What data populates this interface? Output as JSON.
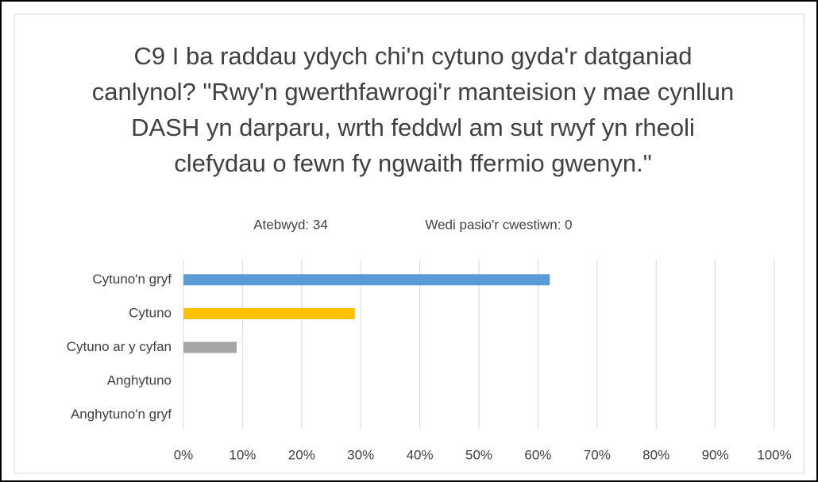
{
  "chart_data": {
    "type": "hbar",
    "title": "C9 I ba raddau ydych chi'n cytuno gyda'r datganiad canlynol? \"Rwy'n gwerthfawrogi'r manteision y mae cynllun DASH yn darparu, wrth feddwl am sut rwyf yn rheoli clefydau o fewn fy ngwaith ffermio gwenyn.\"",
    "subtitles": [
      "Atebwyd: 34",
      "Wedi pasio'r cwestiwn: 0"
    ],
    "categories": [
      "Cytuno'n gryf",
      "Cytuno",
      "Cytuno ar y cyfan",
      "Anghytuno",
      "Anghytuno'n gryf"
    ],
    "values": [
      62,
      29,
      9,
      0,
      0
    ],
    "colors": [
      "#5b9bd5",
      "#ffc000",
      "#a5a5a5",
      "#4472c4",
      "#70ad47"
    ],
    "xlim": [
      0,
      100
    ],
    "xticks": [
      {
        "value": 0,
        "label": "0%"
      },
      {
        "value": 10,
        "label": "10%"
      },
      {
        "value": 20,
        "label": "20%"
      },
      {
        "value": 30,
        "label": "30%"
      },
      {
        "value": 40,
        "label": "40%"
      },
      {
        "value": 50,
        "label": "50%"
      },
      {
        "value": 60,
        "label": "60%"
      },
      {
        "value": 70,
        "label": "70%"
      },
      {
        "value": 80,
        "label": "80%"
      },
      {
        "value": 90,
        "label": "90%"
      },
      {
        "value": 100,
        "label": "100%"
      }
    ],
    "grid": true
  }
}
